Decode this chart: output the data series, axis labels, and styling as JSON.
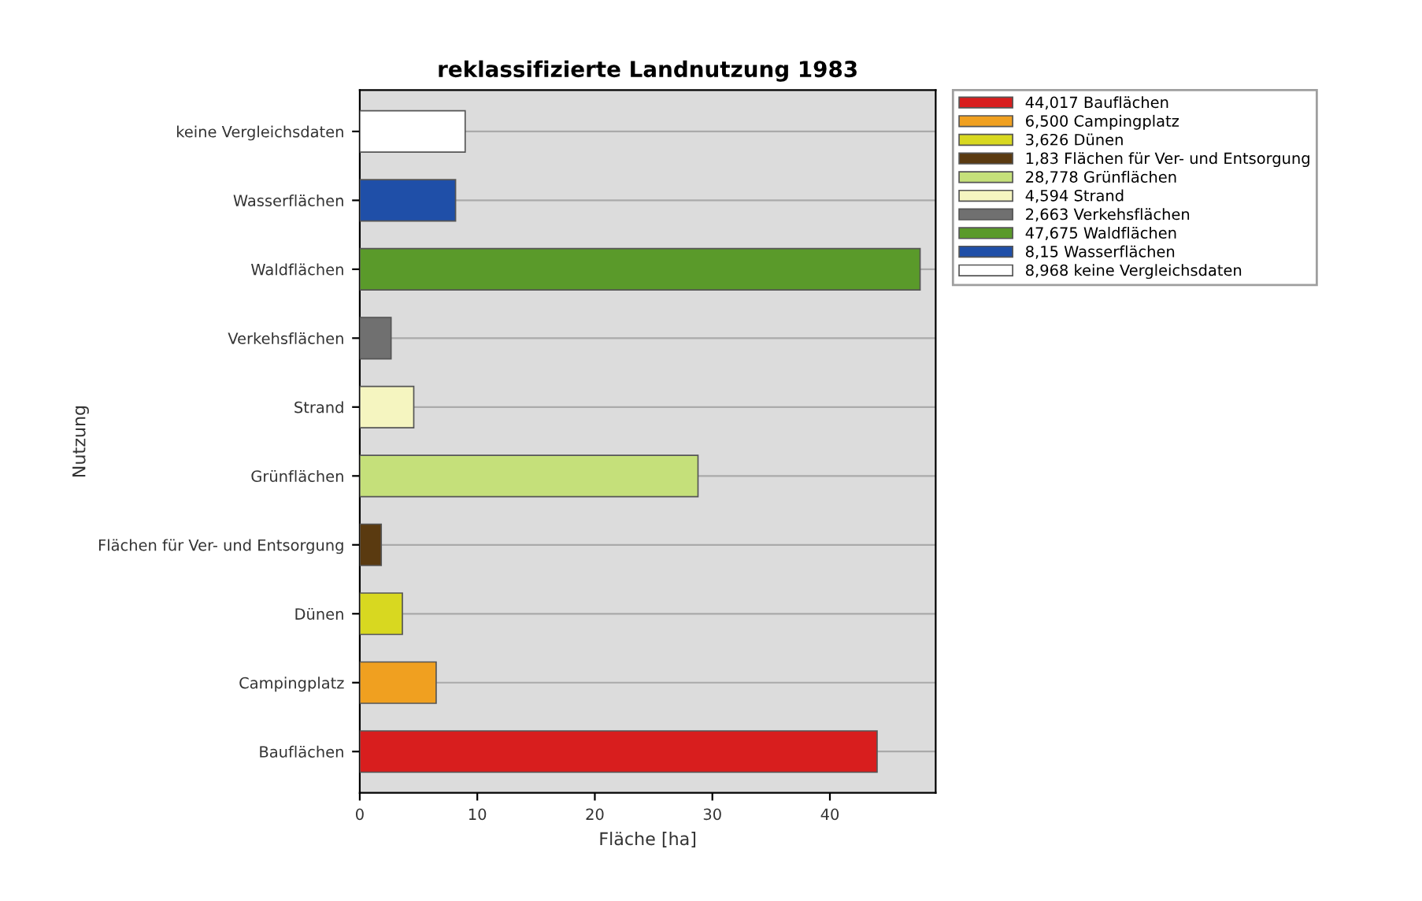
{
  "chart_data": {
    "type": "bar",
    "orientation": "horizontal",
    "title": "reklassifizierte Landnutzung 1983",
    "xlabel": "Fläche [ha]",
    "ylabel": "Nutzung",
    "categories": [
      "keine Vergleichsdaten",
      "Wasserflächen",
      "Waldflächen",
      "Verkehsflächen",
      "Strand",
      "Grünflächen",
      "Flächen für Ver- und Entsorgung",
      "Dünen",
      "Campingplatz",
      "Bauflächen"
    ],
    "series": [
      {
        "name": "44,017 Bauflächen",
        "color": "#d81e1e",
        "values": [
          null,
          null,
          null,
          null,
          null,
          null,
          null,
          null,
          null,
          44.017
        ]
      },
      {
        "name": "6,500 Campingplatz",
        "color": "#f0a020",
        "values": [
          null,
          null,
          null,
          null,
          null,
          null,
          null,
          null,
          6.5,
          null
        ]
      },
      {
        "name": "3,626 Dünen",
        "color": "#d8d820",
        "values": [
          null,
          null,
          null,
          null,
          null,
          null,
          null,
          3.626,
          null,
          null
        ]
      },
      {
        "name": "1,83 Flächen für Ver- und Entsorgung",
        "color": "#5a3a10",
        "values": [
          null,
          null,
          null,
          null,
          null,
          null,
          1.83,
          null,
          null,
          null
        ]
      },
      {
        "name": "28,778 Grünflächen",
        "color": "#c5e07a",
        "values": [
          null,
          null,
          null,
          null,
          null,
          28.778,
          null,
          null,
          null,
          null
        ]
      },
      {
        "name": "4,594 Strand",
        "color": "#f5f5c0",
        "values": [
          null,
          null,
          null,
          null,
          4.594,
          null,
          null,
          null,
          null,
          null
        ]
      },
      {
        "name": "2,663 Verkehsflächen",
        "color": "#707070",
        "values": [
          null,
          null,
          null,
          2.663,
          null,
          null,
          null,
          null,
          null,
          null
        ]
      },
      {
        "name": "47,675 Waldflächen",
        "color": "#5a9a2a",
        "values": [
          null,
          null,
          47.675,
          null,
          null,
          null,
          null,
          null,
          null,
          null
        ]
      },
      {
        "name": "8,15 Wasserflächen",
        "color": "#1f4fa8",
        "values": [
          null,
          8.15,
          null,
          null,
          null,
          null,
          null,
          null,
          null,
          null
        ]
      },
      {
        "name": "8,968 keine Vergleichsdaten",
        "color": "#ffffff",
        "values": [
          8.968,
          null,
          null,
          null,
          null,
          null,
          null,
          null,
          null,
          null
        ]
      }
    ],
    "xlim": [
      0,
      49
    ],
    "xticks": [
      0,
      10,
      20,
      30,
      40
    ],
    "grid": "y",
    "legend": "right"
  }
}
